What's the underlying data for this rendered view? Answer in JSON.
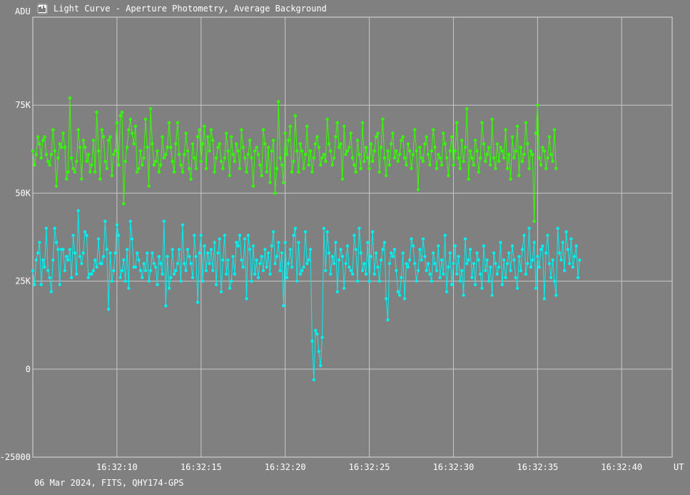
{
  "window": {
    "title": "Light Curve - Aperture Photometry, Average Background"
  },
  "footer": {
    "info": "06 Mar 2024, FITS, QHY174-GPS"
  },
  "colors": {
    "background": "#808080",
    "grid": "#c8c8c8",
    "text": "#ffffff"
  },
  "icons": {
    "app": "light-curve-app-icon"
  },
  "chart_data": {
    "type": "line",
    "title": "",
    "ylabel": "ADU",
    "xlabel": "UT",
    "ylim": [
      -25000,
      100000
    ],
    "xlim": [
      "16:32:05.0",
      "16:32:43.0"
    ],
    "y_ticks": [
      {
        "value": -25000,
        "label": "-25000"
      },
      {
        "value": 0,
        "label": "0"
      },
      {
        "value": 25000,
        "label": "25K"
      },
      {
        "value": 50000,
        "label": "50K"
      },
      {
        "value": 75000,
        "label": "75K"
      }
    ],
    "x_ticks": [
      "16:32:10",
      "16:32:15",
      "16:32:20",
      "16:32:25",
      "16:32:30",
      "16:32:35",
      "16:32:40"
    ],
    "grid": true,
    "series": [
      {
        "color": "#33ff00",
        "x_start": "16:32:05.0",
        "x_step_s": 0.1,
        "values": [
          62000,
          58000,
          61000,
          66000,
          64000,
          60000,
          65000,
          66000,
          61000,
          59000,
          58000,
          61000,
          68000,
          62000,
          52000,
          60000,
          64000,
          63000,
          67000,
          63000,
          54000,
          56000,
          77000,
          60000,
          57000,
          56000,
          59000,
          68000,
          63000,
          54000,
          65000,
          63000,
          59000,
          61000,
          56000,
          58000,
          65000,
          56000,
          73000,
          62000,
          54000,
          68000,
          66000,
          59000,
          57000,
          65000,
          66000,
          55000,
          61000,
          62000,
          70000,
          58000,
          72000,
          73000,
          47000,
          59000,
          63000,
          68000,
          71000,
          67000,
          64000,
          69000,
          56000,
          57000,
          62000,
          58000,
          60000,
          71000,
          63000,
          52000,
          74000,
          64000,
          58000,
          59000,
          62000,
          56000,
          58000,
          66000,
          60000,
          61000,
          63000,
          70000,
          63000,
          59000,
          56000,
          64000,
          70000,
          61000,
          58000,
          56000,
          61000,
          67000,
          62000,
          57000,
          54000,
          64000,
          60000,
          57000,
          66000,
          68000,
          59000,
          64000,
          69000,
          57000,
          66000,
          62000,
          68000,
          65000,
          56000,
          60000,
          63000,
          64000,
          59000,
          57000,
          60000,
          67000,
          62000,
          55000,
          66000,
          61000,
          59000,
          64000,
          62000,
          57000,
          68000,
          63000,
          60000,
          56000,
          61000,
          65000,
          60000,
          52000,
          62000,
          63000,
          61000,
          58000,
          55000,
          68000,
          64000,
          56000,
          63000,
          53000,
          62000,
          65000,
          50000,
          57000,
          76000,
          60000,
          58000,
          53000,
          67000,
          61000,
          65000,
          69000,
          56000,
          59000,
          72000,
          62000,
          56000,
          64000,
          62000,
          57000,
          61000,
          69000,
          58000,
          62000,
          56000,
          60000,
          64000,
          66000,
          63000,
          58000,
          60000,
          61000,
          59000,
          71000,
          64000,
          62000,
          58000,
          60000,
          66000,
          70000,
          63000,
          64000,
          54000,
          69000,
          61000,
          62000,
          63000,
          67000,
          60000,
          58000,
          56000,
          65000,
          61000,
          57000,
          70000,
          59000,
          63000,
          60000,
          57000,
          64000,
          59000,
          62000,
          66000,
          67000,
          56000,
          63000,
          71000,
          60000,
          55000,
          62000,
          58000,
          64000,
          67000,
          60000,
          62000,
          59000,
          61000,
          65000,
          66000,
          60000,
          58000,
          64000,
          62000,
          57000,
          61000,
          68000,
          62000,
          51000,
          63000,
          60000,
          59000,
          64000,
          66000,
          61000,
          58000,
          62000,
          68000,
          63000,
          57000,
          61000,
          60000,
          58000,
          67000,
          64000,
          60000,
          55000,
          62000,
          66000,
          58000,
          62000,
          70000,
          60000,
          57000,
          65000,
          59000,
          63000,
          74000,
          54000,
          62000,
          60000,
          58000,
          65000,
          62000,
          56000,
          60000,
          70000,
          64000,
          59000,
          61000,
          63000,
          58000,
          71000,
          60000,
          57000,
          64000,
          59000,
          63000,
          62000,
          60000,
          68000,
          57000,
          61000,
          54000,
          66000,
          60000,
          62000,
          69000,
          55000,
          63000,
          59000,
          61000,
          70000,
          64000,
          57000,
          62000,
          61000,
          42000,
          67000,
          75000,
          60000,
          58000,
          63000,
          62000,
          57000,
          60000,
          66000,
          61000,
          59000,
          68000,
          57000
        ]
      },
      {
        "color": "#00f0f0",
        "x_start": "16:32:05.0",
        "x_step_s": 0.1,
        "values": [
          28000,
          24000,
          31000,
          33000,
          36000,
          24000,
          31000,
          29000,
          40000,
          28000,
          26000,
          22000,
          31000,
          40000,
          36000,
          34000,
          24000,
          34000,
          34000,
          28000,
          32000,
          31000,
          34000,
          26000,
          38000,
          33000,
          27000,
          45000,
          32000,
          30000,
          33000,
          39000,
          38000,
          26000,
          27000,
          27000,
          28000,
          31000,
          29000,
          37000,
          30000,
          30000,
          32000,
          42000,
          34000,
          17000,
          33000,
          25000,
          28000,
          33000,
          41000,
          38000,
          26000,
          28000,
          31000,
          25000,
          34000,
          23000,
          42000,
          37000,
          29000,
          29000,
          33000,
          31000,
          28000,
          26000,
          30000,
          28000,
          33000,
          25000,
          28000,
          33000,
          30000,
          29000,
          24000,
          32000,
          30000,
          27000,
          42000,
          18000,
          32000,
          23000,
          26000,
          34000,
          27000,
          28000,
          30000,
          34000,
          25000,
          41000,
          30000,
          28000,
          34000,
          32000,
          30000,
          26000,
          38000,
          32000,
          19000,
          33000,
          38000,
          25000,
          35000,
          28000,
          33000,
          30000,
          34000,
          28000,
          36000,
          24000,
          33000,
          37000,
          22000,
          31000,
          38000,
          27000,
          31000,
          23000,
          25000,
          32000,
          27000,
          36000,
          35000,
          38000,
          31000,
          29000,
          37000,
          20000,
          38000,
          34000,
          25000,
          35000,
          27000,
          31000,
          26000,
          30000,
          32000,
          28000,
          34000,
          29000,
          33000,
          27000,
          35000,
          39000,
          30000,
          32000,
          36000,
          28000,
          33000,
          18000,
          36000,
          26000,
          30000,
          34000,
          29000,
          38000,
          40000,
          25000,
          36000,
          27000,
          28000,
          29000,
          39000,
          30000,
          31000,
          34000,
          8000,
          -3000,
          11000,
          10000,
          5000,
          1000,
          9000,
          40000,
          28000,
          39000,
          33000,
          27000,
          32000,
          30000,
          36000,
          22000,
          31000,
          34000,
          32000,
          23000,
          30000,
          35000,
          29000,
          28000,
          27000,
          38000,
          34000,
          25000,
          40000,
          33000,
          28000,
          30000,
          27000,
          36000,
          25000,
          32000,
          39000,
          27000,
          33000,
          29000,
          25000,
          31000,
          34000,
          36000,
          20000,
          14000,
          30000,
          33000,
          32000,
          34000,
          28000,
          22000,
          21000,
          26000,
          33000,
          20000,
          30000,
          29000,
          31000,
          37000,
          35000,
          30000,
          25000,
          28000,
          34000,
          31000,
          37000,
          32000,
          28000,
          30000,
          27000,
          25000,
          33000,
          30000,
          28000,
          35000,
          26000,
          31000,
          27000,
          38000,
          22000,
          29000,
          33000,
          24000,
          30000,
          35000,
          27000,
          32000,
          25000,
          28000,
          21000,
          37000,
          30000,
          31000,
          34000,
          26000,
          30000,
          24000,
          33000,
          31000,
          27000,
          23000,
          35000,
          28000,
          31000,
          25000,
          29000,
          21000,
          33000,
          30000,
          27000,
          29000,
          36000,
          24000,
          31000,
          26000,
          30000,
          33000,
          28000,
          35000,
          31000,
          26000,
          23000,
          32000,
          28000,
          34000,
          38000,
          27000,
          30000,
          40000,
          29000,
          31000,
          36000,
          23000,
          32000,
          29000,
          34000,
          35000,
          20000,
          33000,
          38000,
          30000,
          26000,
          31000,
          25000,
          21000,
          40000,
          33000,
          31000,
          36000,
          28000,
          39000,
          34000,
          30000,
          37000,
          29000,
          32000,
          35000,
          26000,
          31000
        ]
      }
    ]
  }
}
